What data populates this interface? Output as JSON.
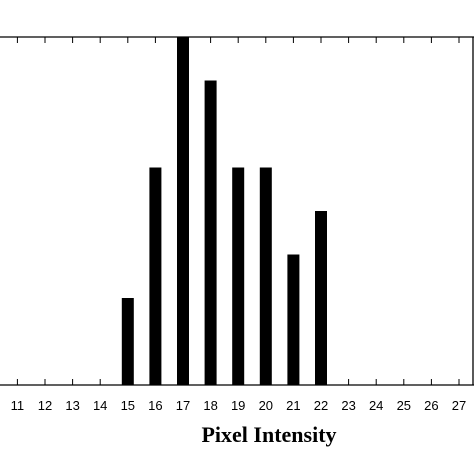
{
  "chart_data": {
    "type": "bar",
    "title": "",
    "xlabel": "Pixel Intensity",
    "ylabel": "",
    "categories": [
      "11",
      "12",
      "13",
      "14",
      "15",
      "16",
      "17",
      "18",
      "19",
      "20",
      "21",
      "22",
      "23",
      "24",
      "25",
      "26",
      "27"
    ],
    "values": [
      0,
      0,
      0,
      0,
      2,
      5,
      8,
      7,
      5,
      5,
      3,
      4,
      0,
      0,
      0,
      0,
      0
    ],
    "ylim": [
      0,
      8
    ],
    "xlim": [
      10,
      27.3
    ],
    "grid": false,
    "bar_color": "#000000"
  }
}
